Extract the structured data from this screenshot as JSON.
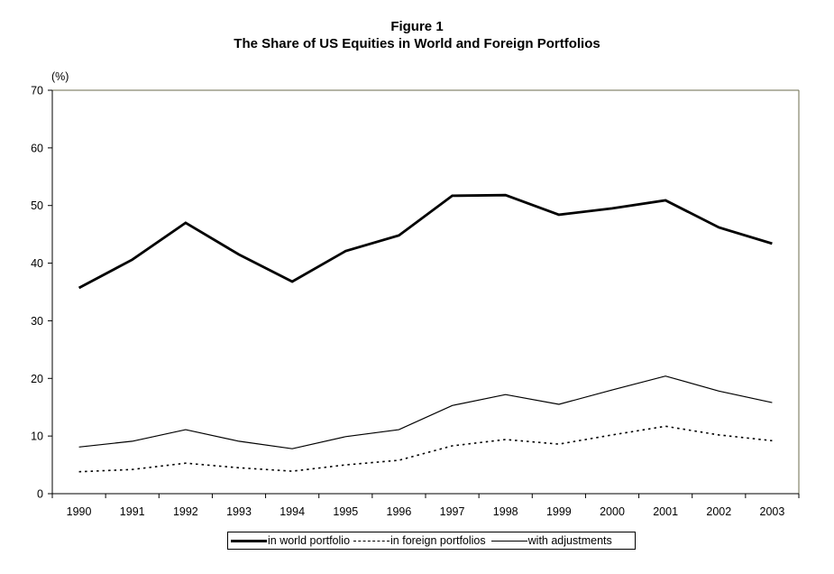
{
  "chart_data": {
    "type": "line",
    "title": "Figure 1",
    "subtitle": "The Share of US Equities in World and Foreign Portfolios",
    "ylabel": "(%)",
    "xlabel": "",
    "ylim": [
      0,
      70
    ],
    "yticks": [
      0,
      10,
      20,
      30,
      40,
      50,
      60,
      70
    ],
    "grid": false,
    "legend_position": "bottom-center",
    "categories": [
      "1990",
      "1991",
      "1992",
      "1993",
      "1994",
      "1995",
      "1996",
      "1997",
      "1998",
      "1999",
      "2000",
      "2001",
      "2002",
      "2003"
    ],
    "series": [
      {
        "name": "in world portfolio",
        "style": "heavy",
        "values": [
          35.7,
          40.6,
          47.0,
          41.5,
          36.8,
          42.1,
          44.8,
          51.7,
          51.8,
          48.4,
          49.5,
          50.9,
          46.2,
          43.4
        ]
      },
      {
        "name": "in foreign portfolios",
        "style": "dotted",
        "values": [
          3.8,
          4.2,
          5.3,
          4.5,
          3.9,
          5.0,
          5.8,
          8.3,
          9.4,
          8.6,
          10.2,
          11.7,
          10.2,
          9.2
        ]
      },
      {
        "name": "with adjustments",
        "style": "thin",
        "values": [
          8.1,
          9.1,
          11.1,
          9.1,
          7.8,
          9.9,
          11.1,
          15.3,
          17.2,
          15.5,
          18.0,
          20.4,
          17.8,
          15.8
        ]
      }
    ]
  },
  "colors": {
    "line": "#000000",
    "plot_border": "#6b6b4e"
  }
}
